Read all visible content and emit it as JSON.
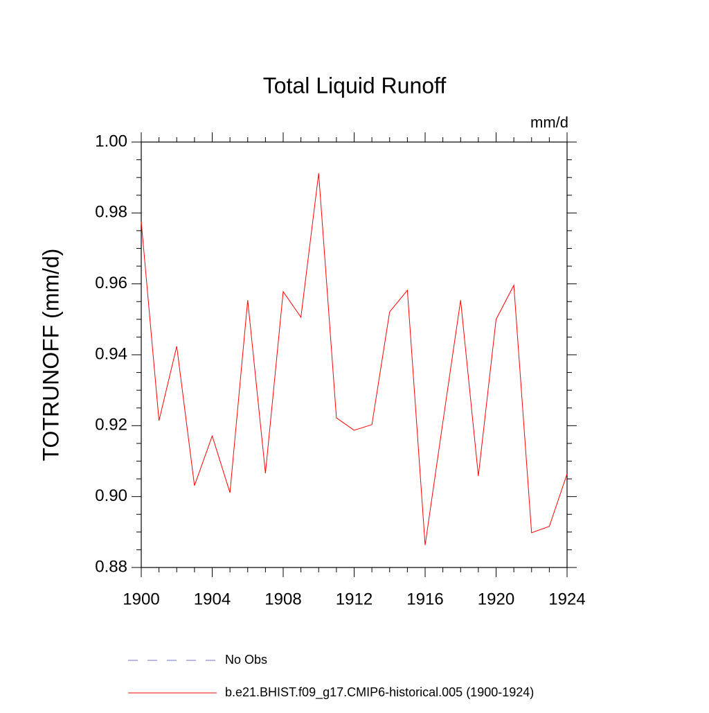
{
  "chart_data": {
    "type": "line",
    "title": "Total Liquid Runoff",
    "units": "mm/d",
    "ylabel": "TOTRUNOFF  (mm/d)",
    "x": [
      1900,
      1901,
      1902,
      1903,
      1904,
      1905,
      1906,
      1907,
      1908,
      1909,
      1910,
      1911,
      1912,
      1913,
      1914,
      1915,
      1916,
      1917,
      1918,
      1919,
      1920,
      1921,
      1922,
      1923,
      1924
    ],
    "series": [
      {
        "name": "b.e21.BHIST.f09_g17.CMIP6-historical.005 (1900-1924)",
        "color": "#ff0000",
        "values": [
          0.9775,
          0.9214,
          0.9424,
          0.9031,
          0.9171,
          0.9011,
          0.9554,
          0.9066,
          0.9578,
          0.9506,
          0.9912,
          0.9222,
          0.9187,
          0.9203,
          0.9521,
          0.9582,
          0.8863,
          0.921,
          0.9554,
          0.9058,
          0.95,
          0.9596,
          0.8898,
          0.8916,
          0.9064
        ]
      }
    ],
    "reference": {
      "name": "No Obs",
      "color": "#7070c0",
      "dashed": true
    },
    "xlim": [
      1900,
      1924
    ],
    "xticks": [
      1900,
      1904,
      1908,
      1912,
      1916,
      1920,
      1924
    ],
    "xminor": [
      1901,
      1902,
      1903,
      1905,
      1906,
      1907,
      1909,
      1910,
      1911,
      1913,
      1914,
      1915,
      1917,
      1918,
      1919,
      1921,
      1922,
      1923
    ],
    "ylim": [
      0.88,
      1.0
    ],
    "yticks": [
      {
        "value": 0.88,
        "label": "0.88"
      },
      {
        "value": 0.9,
        "label": "0.90"
      },
      {
        "value": 0.92,
        "label": "0.92"
      },
      {
        "value": 0.94,
        "label": "0.94"
      },
      {
        "value": 0.96,
        "label": "0.96"
      },
      {
        "value": 0.98,
        "label": "0.98"
      },
      {
        "value": 1.0,
        "label": "1.00"
      }
    ],
    "yminor": [
      0.885,
      0.89,
      0.895,
      0.905,
      0.91,
      0.915,
      0.925,
      0.93,
      0.935,
      0.945,
      0.95,
      0.955,
      0.965,
      0.97,
      0.975,
      0.985,
      0.99,
      0.995
    ]
  }
}
